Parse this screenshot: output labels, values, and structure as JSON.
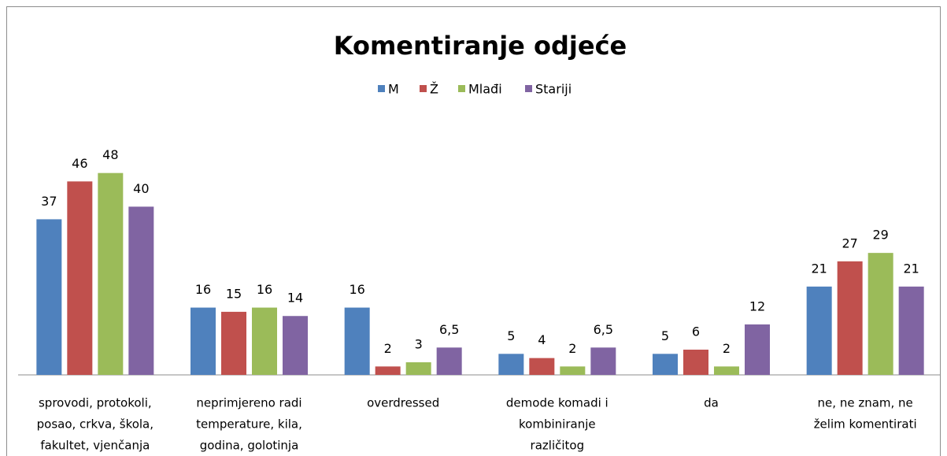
{
  "chart_data": {
    "type": "bar",
    "title": "Komentiranje odjeće",
    "categories": [
      [
        "sprovodi, protokoli,",
        "posao, crkva, škola,",
        "fakultet, vjenčanja"
      ],
      [
        "neprimjereno radi",
        "temperature, kila,",
        "godina, golotinja"
      ],
      [
        "overdressed"
      ],
      [
        "demode komadi i",
        "kombiniranje",
        "različitog"
      ],
      [
        "da"
      ],
      [
        "ne, ne znam, ne",
        "želim komentirati"
      ]
    ],
    "series": [
      {
        "name": "M",
        "color": "#4f81bd",
        "values": [
          37,
          16,
          16,
          5,
          5,
          21
        ]
      },
      {
        "name": "Ž",
        "color": "#c0504d",
        "values": [
          46,
          15,
          2,
          4,
          6,
          27
        ]
      },
      {
        "name": "Mlađi",
        "color": "#9bbb59",
        "values": [
          48,
          16,
          3,
          2,
          2,
          29
        ]
      },
      {
        "name": "Stariji",
        "color": "#8064a2",
        "values": [
          40,
          14,
          6.5,
          6.5,
          12,
          21
        ],
        "value_labels": [
          "40",
          "14",
          "6,5",
          "6,5",
          "12",
          "21"
        ]
      }
    ],
    "ylim": [
      0,
      50
    ],
    "legend": "top"
  }
}
